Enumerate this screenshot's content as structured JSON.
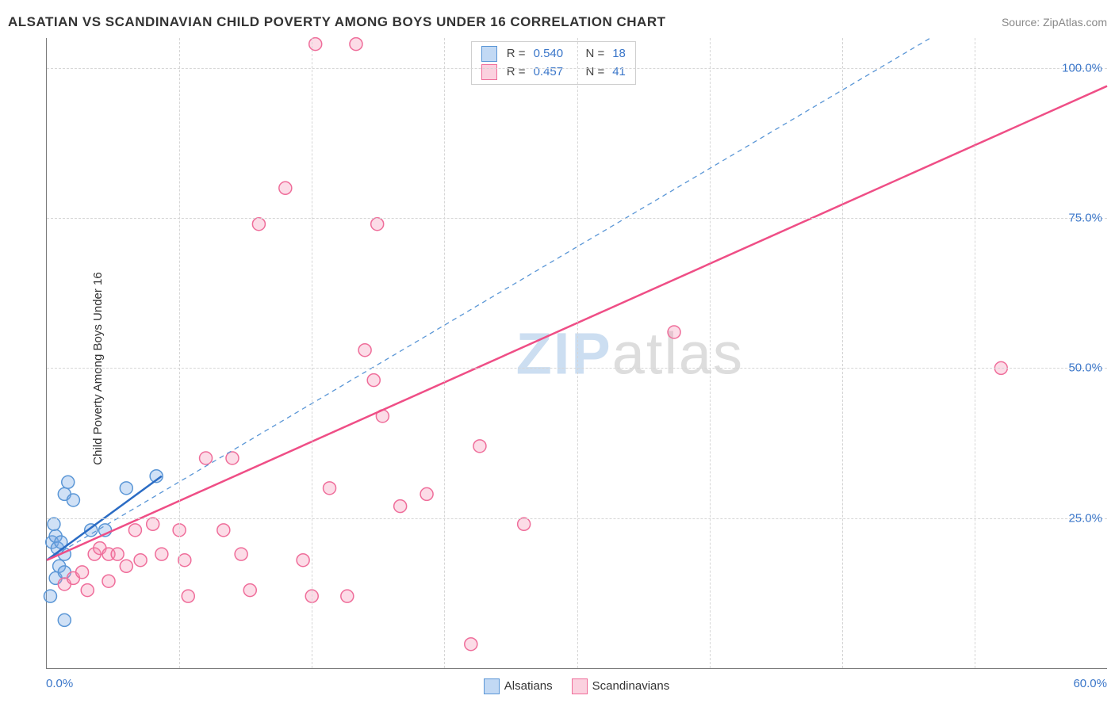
{
  "header": {
    "title": "ALSATIAN VS SCANDINAVIAN CHILD POVERTY AMONG BOYS UNDER 16 CORRELATION CHART",
    "source_label": "Source: ",
    "source_name": "ZipAtlas.com"
  },
  "y_axis_label": "Child Poverty Among Boys Under 16",
  "watermark": {
    "part1": "ZIP",
    "part2": "atlas"
  },
  "chart": {
    "type": "scatter",
    "background_color": "#ffffff",
    "border_color": "#7a7a7a",
    "grid_color": "#d6d6d6",
    "xlim": [
      0,
      60
    ],
    "ylim": [
      0,
      105
    ],
    "x_ticks_major": [
      0,
      60
    ],
    "x_ticks_minor": [
      7.5,
      15,
      22.5,
      30,
      37.5,
      45,
      52.5
    ],
    "y_ticks": [
      25,
      50,
      75,
      100
    ],
    "x_tick_labels": {
      "0": "0.0%",
      "60": "60.0%"
    },
    "y_tick_labels": {
      "25": "25.0%",
      "50": "50.0%",
      "75": "75.0%",
      "100": "100.0%"
    },
    "tick_label_color": "#3a76c9",
    "tick_fontsize": 15,
    "marker_radius": 8,
    "marker_stroke_width": 1.5,
    "series": [
      {
        "name": "Alsatians",
        "fill": "rgba(120,170,230,0.35)",
        "stroke": "#5a96d6",
        "R": "0.540",
        "N": "18",
        "trend_extrapolated": {
          "x1": 0,
          "y1": 18,
          "x2": 50,
          "y2": 105,
          "stroke": "#5a96d6",
          "dash": "6,5",
          "width": 1.3
        },
        "trend_solid": {
          "x1": 0,
          "y1": 18,
          "x2": 6.5,
          "y2": 32,
          "stroke": "#2b6cc4",
          "width": 2.5
        },
        "points": [
          [
            0.3,
            21
          ],
          [
            0.5,
            22
          ],
          [
            0.6,
            20
          ],
          [
            0.8,
            21
          ],
          [
            1.0,
            19
          ],
          [
            1.0,
            29
          ],
          [
            1.2,
            31
          ],
          [
            1.5,
            28
          ],
          [
            0.4,
            24
          ],
          [
            0.7,
            17
          ],
          [
            0.2,
            12
          ],
          [
            0.5,
            15
          ],
          [
            1.0,
            16
          ],
          [
            2.5,
            23
          ],
          [
            3.3,
            23
          ],
          [
            4.5,
            30
          ],
          [
            6.2,
            32
          ],
          [
            1.0,
            8
          ]
        ]
      },
      {
        "name": "Scandinavians",
        "fill": "rgba(245,140,175,0.30)",
        "stroke": "#ef6d9a",
        "R": "0.457",
        "N": "41",
        "trend_solid": {
          "x1": 0,
          "y1": 18,
          "x2": 60,
          "y2": 97,
          "stroke": "#ef4e86",
          "width": 2.5
        },
        "points": [
          [
            1.0,
            14
          ],
          [
            1.5,
            15
          ],
          [
            2.0,
            16
          ],
          [
            2.3,
            13
          ],
          [
            2.7,
            19
          ],
          [
            3.0,
            20
          ],
          [
            3.5,
            19
          ],
          [
            3.5,
            14.5
          ],
          [
            4.0,
            19
          ],
          [
            4.5,
            17
          ],
          [
            5.0,
            23
          ],
          [
            5.3,
            18
          ],
          [
            6.0,
            24
          ],
          [
            6.5,
            19
          ],
          [
            7.5,
            23
          ],
          [
            7.8,
            18
          ],
          [
            8.0,
            12
          ],
          [
            9.0,
            35
          ],
          [
            10.0,
            23
          ],
          [
            10.5,
            35
          ],
          [
            11.0,
            19
          ],
          [
            11.5,
            13
          ],
          [
            12.0,
            74
          ],
          [
            13.5,
            80
          ],
          [
            14.5,
            18
          ],
          [
            15.0,
            12
          ],
          [
            15.2,
            104
          ],
          [
            16.0,
            30
          ],
          [
            17.0,
            12
          ],
          [
            17.5,
            104
          ],
          [
            18.0,
            53
          ],
          [
            18.5,
            48
          ],
          [
            18.7,
            74
          ],
          [
            19.0,
            42
          ],
          [
            20.0,
            27
          ],
          [
            21.5,
            29
          ],
          [
            24.0,
            4
          ],
          [
            24.5,
            37
          ],
          [
            27.0,
            24
          ],
          [
            35.5,
            56
          ],
          [
            54.0,
            50
          ]
        ]
      }
    ],
    "bottom_legend": [
      {
        "label": "Alsatians",
        "fill": "rgba(120,170,230,0.45)",
        "stroke": "#5a96d6"
      },
      {
        "label": "Scandinavians",
        "fill": "rgba(245,140,175,0.40)",
        "stroke": "#ef6d9a"
      }
    ],
    "stats_box": {
      "border_color": "#cfcfcf",
      "rows": [
        {
          "swatch_fill": "rgba(120,170,230,0.45)",
          "swatch_stroke": "#5a96d6",
          "R": "0.540",
          "N": "18"
        },
        {
          "swatch_fill": "rgba(245,140,175,0.40)",
          "swatch_stroke": "#ef6d9a",
          "R": "0.457",
          "N": "41"
        }
      ],
      "labels": {
        "R": "R =",
        "N": "N ="
      }
    }
  }
}
